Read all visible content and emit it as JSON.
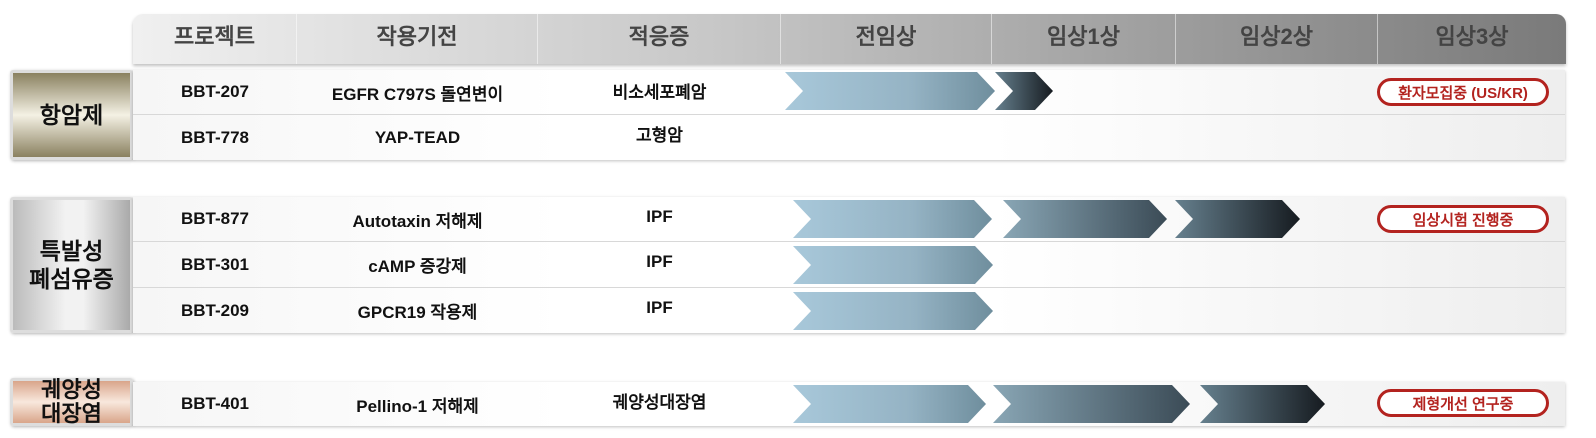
{
  "header": [
    "프로젝트",
    "작용기전",
    "적응증",
    "전임상",
    "임상1상",
    "임상2상",
    "임상3상"
  ],
  "colors": {
    "badge": "#b3231f",
    "preclinical": "#a3c4d6",
    "phase1": "#5e7583",
    "phase2": "#1e252b"
  },
  "groups": [
    {
      "category": "항암제",
      "rows": [
        {
          "project": "BBT-207",
          "moa": "EGFR C797S 돌연변이",
          "indication": "비소세포폐암",
          "stage": "전임상 → 임상1상 진입",
          "badge": "환자모집중 (US/KR)"
        },
        {
          "project": "BBT-778",
          "moa": "YAP-TEAD",
          "indication": "고형암"
        }
      ]
    },
    {
      "category": "특발성 폐섬유증",
      "rows": [
        {
          "project": "BBT-877",
          "moa": "Autotaxin 저해제",
          "indication": "IPF",
          "stage": "임상2상",
          "badge": "임상시험 진행중"
        },
        {
          "project": "BBT-301",
          "moa": "cAMP 증강제",
          "indication": "IPF",
          "stage": "전임상"
        },
        {
          "project": "BBT-209",
          "moa": "GPCR19 작용제",
          "indication": "IPF",
          "stage": "전임상"
        }
      ]
    },
    {
      "category": "궤양성 대장염",
      "rows": [
        {
          "project": "BBT-401",
          "moa": "Pellino-1 저해제",
          "indication": "궤양성대장염",
          "stage": "임상2상",
          "badge": "제형개선 연구중"
        }
      ]
    }
  ]
}
